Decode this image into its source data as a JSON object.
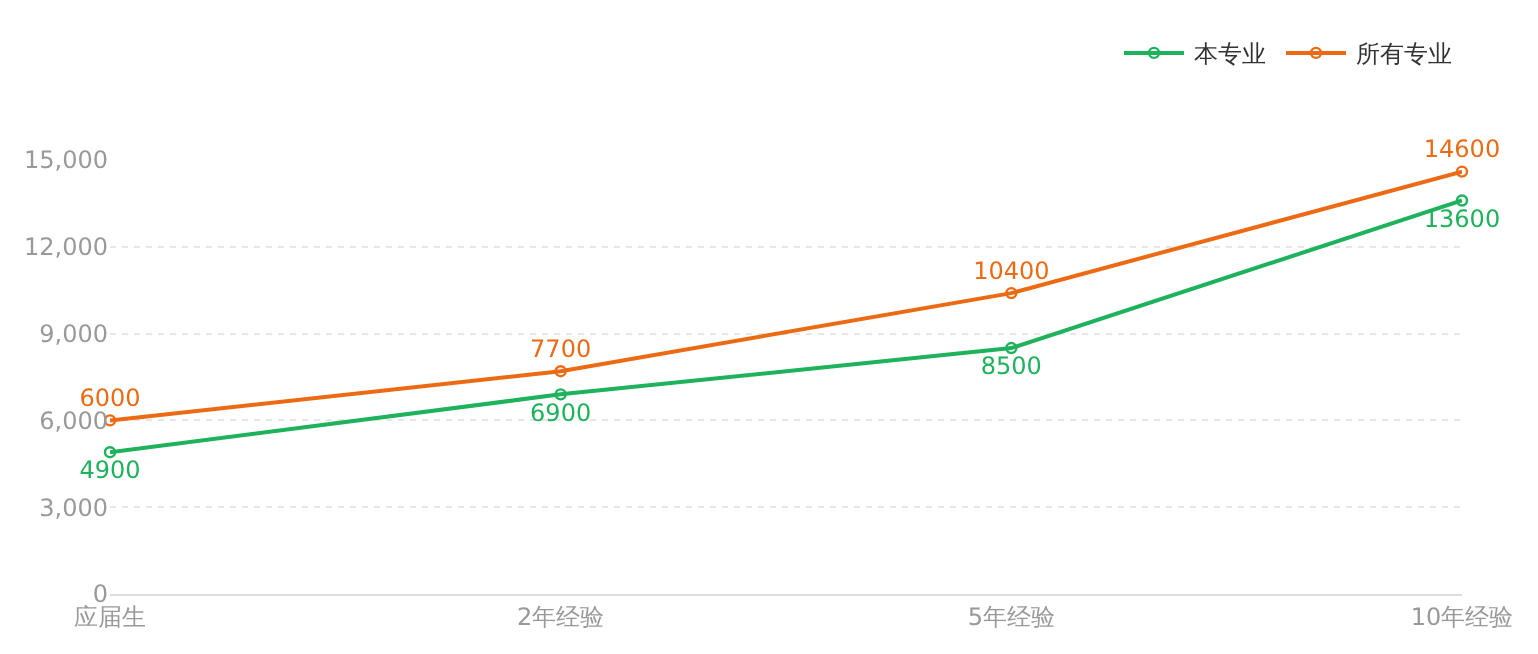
{
  "chart_data": {
    "type": "line",
    "categories": [
      "应届生",
      "2年经验",
      "5年经验",
      "10年经验"
    ],
    "series": [
      {
        "name": "本专业",
        "color": "#1db25b",
        "values": [
          4900,
          6900,
          8500,
          13600
        ]
      },
      {
        "name": "所有专业",
        "color": "#ec6a13",
        "values": [
          6000,
          7700,
          10400,
          14600
        ]
      }
    ],
    "ylim": [
      0,
      15000
    ],
    "yticks": [
      0,
      {
        "value": 3000,
        "label": "3,000"
      },
      {
        "value": 6000,
        "label": "6,000"
      },
      {
        "value": 9000,
        "label": "9,000"
      },
      {
        "value": 12000,
        "label": "12,000"
      },
      {
        "value": 15000,
        "label": "15,000"
      }
    ],
    "grid": "y",
    "legend": "top right",
    "marker": "circle",
    "line_style": "solid",
    "data_labels": true
  }
}
